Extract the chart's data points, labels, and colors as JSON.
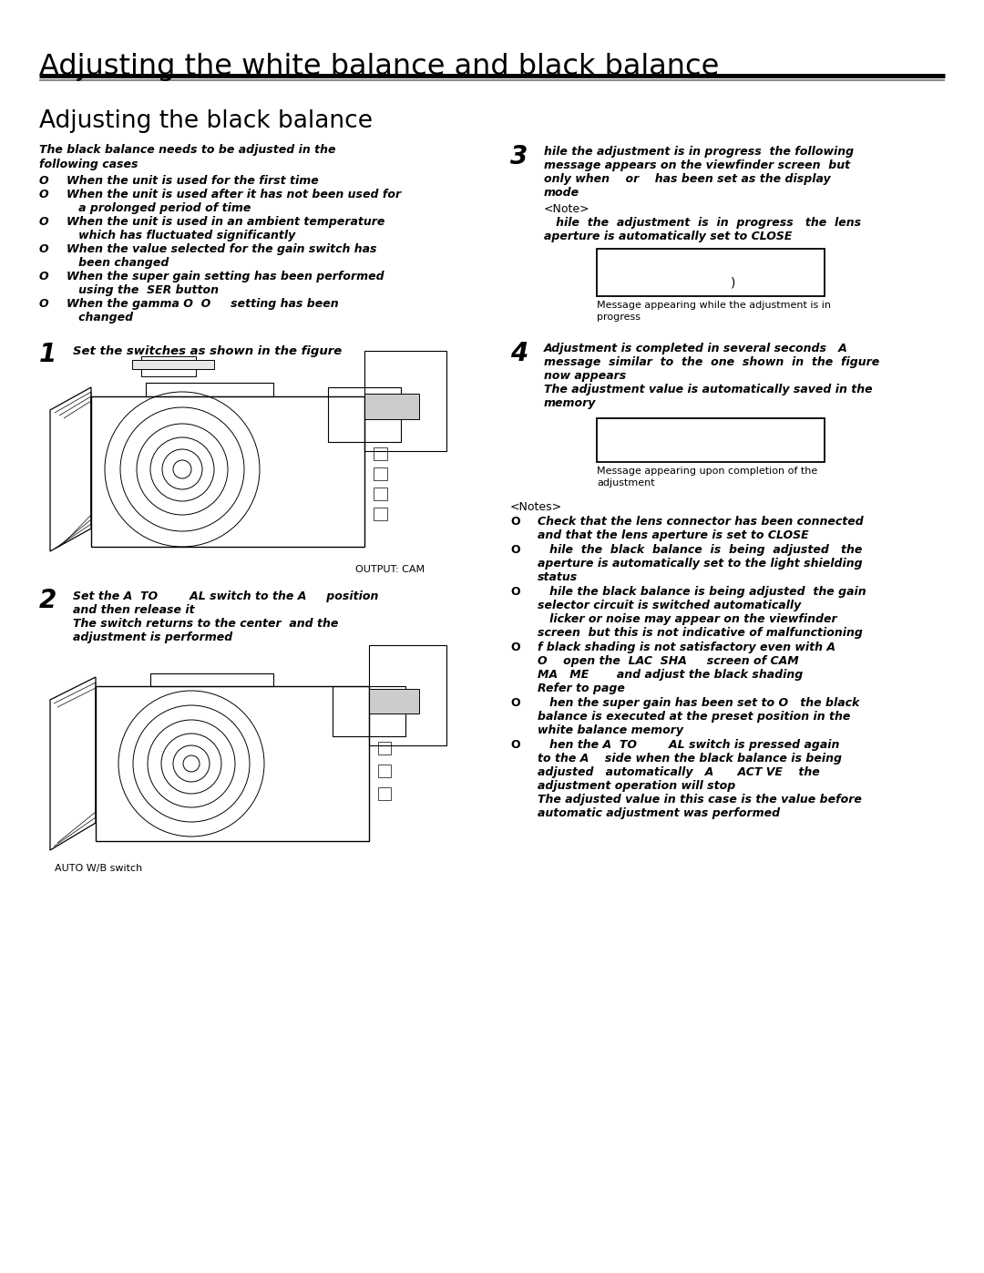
{
  "page_title": "Adjusting the white balance and black balance",
  "section_title": "Adjusting the black balance",
  "bg_color": "#ffffff",
  "intro_line1": "The black balance needs to be adjusted in the",
  "intro_line2": "following cases",
  "bullets": [
    [
      "hen the unit is used for the first time"
    ],
    [
      "hen the unit is used after it has not been used for",
      "a prolonged period of time"
    ],
    [
      "hen the unit is used in an ambient temperature",
      "which has fluctuated significantly"
    ],
    [
      "hen the value selected for the gain switch has",
      "been changed"
    ],
    [
      "hen the super gain setting has been performed",
      "using the  SER button"
    ],
    [
      "hen the gamma O  O     setting has been",
      "changed"
    ]
  ],
  "step1_num": "1",
  "step1_text": "Set the switches as shown in the figure",
  "step1_caption": "OUTPUT: CAM",
  "step2_num": "2",
  "step2_lines": [
    "Set the A  TO        AL switch to the A     position",
    "and then release it",
    "The switch returns to the center  and the",
    "adjustment is performed"
  ],
  "step2_caption": "AUTO W/B switch",
  "step3_num": "3",
  "step3_lines": [
    "hile the adjustment is in progress  the following",
    "message appears on the viewfinder screen  but",
    "only when    or    has been set as the display",
    "mode"
  ],
  "step3_note_hdr": "<Note>",
  "step3_note_lines": [
    "   hile  the  adjustment  is  in  progress   the  lens",
    "aperture is automatically set to CLOSE"
  ],
  "step3_box_char": ")",
  "step3_cap_lines": [
    "Message appearing while the adjustment is in",
    "progress"
  ],
  "step4_num": "4",
  "step4_lines": [
    "Adjustment is completed in several seconds   A",
    "message  similar  to  the  one  shown  in  the  figure",
    "now appears",
    "The adjustment value is automatically saved in the",
    "memory"
  ],
  "step4_cap_lines": [
    "Message appearing upon completion of the",
    "adjustment"
  ],
  "notes_hdr": "<Notes>",
  "notes": [
    [
      "O",
      "Check that the lens connector has been connected",
      "and that the lens aperture is set to CLOSE"
    ],
    [
      "O",
      "   hile  the  black  balance  is  being  adjusted   the",
      "aperture is automatically set to the light shielding",
      "status"
    ],
    [
      "O",
      "   hile the black balance is being adjusted  the gain",
      "selector circuit is switched automatically",
      "   licker or noise may appear on the viewfinder",
      "screen  but this is not indicative of malfunctioning"
    ],
    [
      "O",
      "f black shading is not satisfactory even with A",
      "O    open the  LAC  SHA     screen of CAM",
      "MA   ME       and adjust the black shading",
      "Refer to page"
    ],
    [
      "O",
      "   hen the super gain has been set to O   the black",
      "balance is executed at the preset position in the",
      "white balance memory"
    ],
    [
      "O",
      "   hen the A  TO        AL switch is pressed again",
      "to the A    side when the black balance is being",
      "adjusted   automatically   A      ACT VE    the",
      "adjustment operation will stop",
      "The adjusted value in this case is the value before",
      "automatic adjustment was performed"
    ]
  ]
}
